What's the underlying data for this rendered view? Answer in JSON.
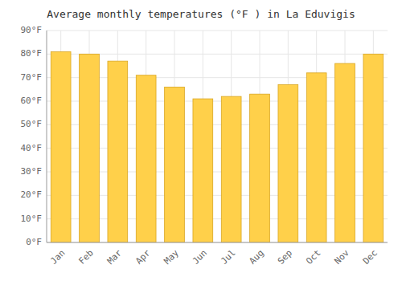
{
  "chart_data": {
    "type": "bar",
    "title": "Average monthly temperatures (°F ) in La Eduvigis",
    "categories": [
      "Jan",
      "Feb",
      "Mar",
      "Apr",
      "May",
      "Jun",
      "Jul",
      "Aug",
      "Sep",
      "Oct",
      "Nov",
      "Dec"
    ],
    "values": [
      81,
      80,
      77,
      71,
      66,
      61,
      62,
      63,
      67,
      72,
      76,
      80
    ],
    "color": "#FFD04A",
    "ylim": [
      0,
      90
    ],
    "yticks": [
      {
        "value": 0,
        "label": "0°F"
      },
      {
        "value": 10,
        "label": "10°F"
      },
      {
        "value": 20,
        "label": "20°F"
      },
      {
        "value": 30,
        "label": "30°F"
      },
      {
        "value": 40,
        "label": "40°F"
      },
      {
        "value": 50,
        "label": "50°F"
      },
      {
        "value": 60,
        "label": "60°F"
      },
      {
        "value": 70,
        "label": "70°F"
      },
      {
        "value": 80,
        "label": "80°F"
      },
      {
        "value": 90,
        "label": "90°F"
      }
    ],
    "grid": true
  }
}
